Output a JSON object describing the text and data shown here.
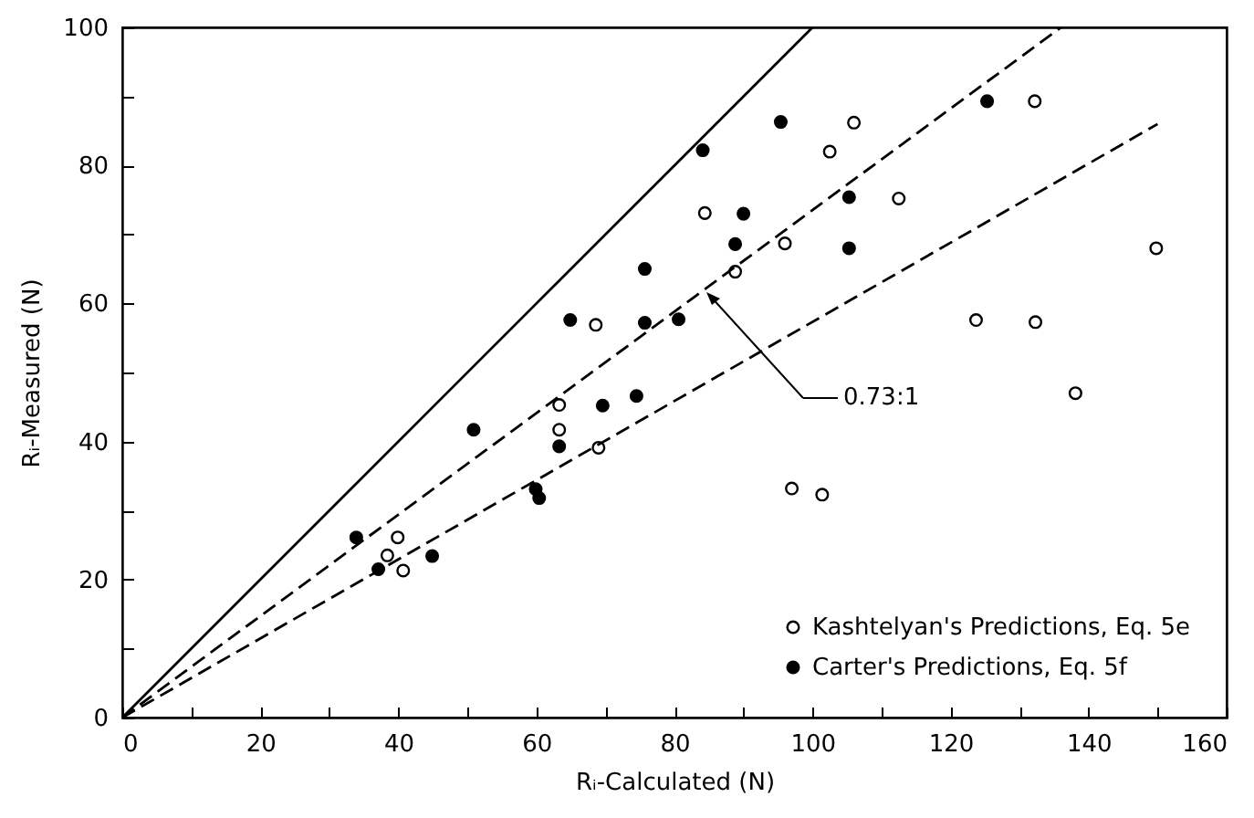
{
  "chart_data": {
    "type": "scatter",
    "xlabel": "Rᵢ-Calculated (N)",
    "ylabel": "Rᵢ-Measured (N)",
    "xlim": [
      0,
      160
    ],
    "ylim": [
      0,
      100
    ],
    "xticks": [
      0,
      {
        "value": 10,
        "label": null
      },
      20,
      {
        "value": 30,
        "label": null
      },
      40,
      {
        "value": 50,
        "label": null
      },
      60,
      {
        "value": 70,
        "label": null
      },
      80,
      {
        "value": 90,
        "label": null
      },
      100,
      {
        "value": 110,
        "label": null
      },
      120,
      {
        "value": 130,
        "label": null
      },
      140,
      {
        "value": 150,
        "label": null
      },
      160
    ],
    "yticks": [
      0,
      {
        "value": 10,
        "label": null
      },
      20,
      {
        "value": 30,
        "label": null
      },
      40,
      {
        "value": 50,
        "label": null
      },
      60,
      {
        "value": 70,
        "label": null
      },
      80,
      {
        "value": 90,
        "label": null
      },
      100
    ],
    "grid": false,
    "legend": "bottom right",
    "annotations": [
      "0.73:1"
    ],
    "series": [
      {
        "name": "Kashtelyan's Predictions, Eq. 5e",
        "color": "#000000",
        "marker": "circle",
        "x": [
          39.9,
          38.4,
          40.7,
          63.3,
          63.3,
          68.6,
          69.0,
          84.4,
          96.0,
          88.8,
          102.5,
          106.0,
          112.5,
          132.2,
          149.8,
          123.7,
          132.3,
          138.1,
          97.0,
          101.4
        ],
        "values": [
          26.1,
          23.5,
          21.3,
          45.3,
          41.7,
          56.9,
          39.1,
          73.1,
          68.7,
          64.6,
          82.0,
          86.2,
          75.2,
          89.3,
          68.0,
          57.6,
          57.3,
          47.0,
          33.2,
          32.3
        ]
      },
      {
        "name": "Carter's Predictions, Eq. 5f",
        "color": "#000000",
        "marker": "circle",
        "x": [
          33.9,
          37.1,
          44.9,
          50.9,
          59.9,
          60.4,
          63.3,
          64.9,
          69.6,
          74.5,
          75.7,
          75.7,
          80.6,
          84.1,
          95.4,
          125.3,
          90.0,
          88.8,
          105.3,
          105.3
        ],
        "values": [
          26.1,
          21.5,
          23.4,
          41.7,
          33.1,
          31.8,
          39.3,
          57.6,
          45.2,
          46.6,
          65.0,
          57.2,
          57.7,
          82.2,
          86.3,
          89.3,
          73.0,
          68.6,
          75.4,
          68.0
        ]
      },
      {
        "type": "line",
        "line_style": "solid",
        "color": "#000000",
        "x": [
          0,
          100
        ],
        "values": [
          0,
          100
        ]
      },
      {
        "type": "line",
        "line_style": "dashed",
        "color": "#000000",
        "x": [
          0,
          136
        ],
        "values": [
          0,
          100
        ]
      },
      {
        "type": "line",
        "line_style": "dashed",
        "color": "#000000",
        "x": [
          0,
          150
        ],
        "values": [
          0,
          86
        ]
      }
    ]
  }
}
